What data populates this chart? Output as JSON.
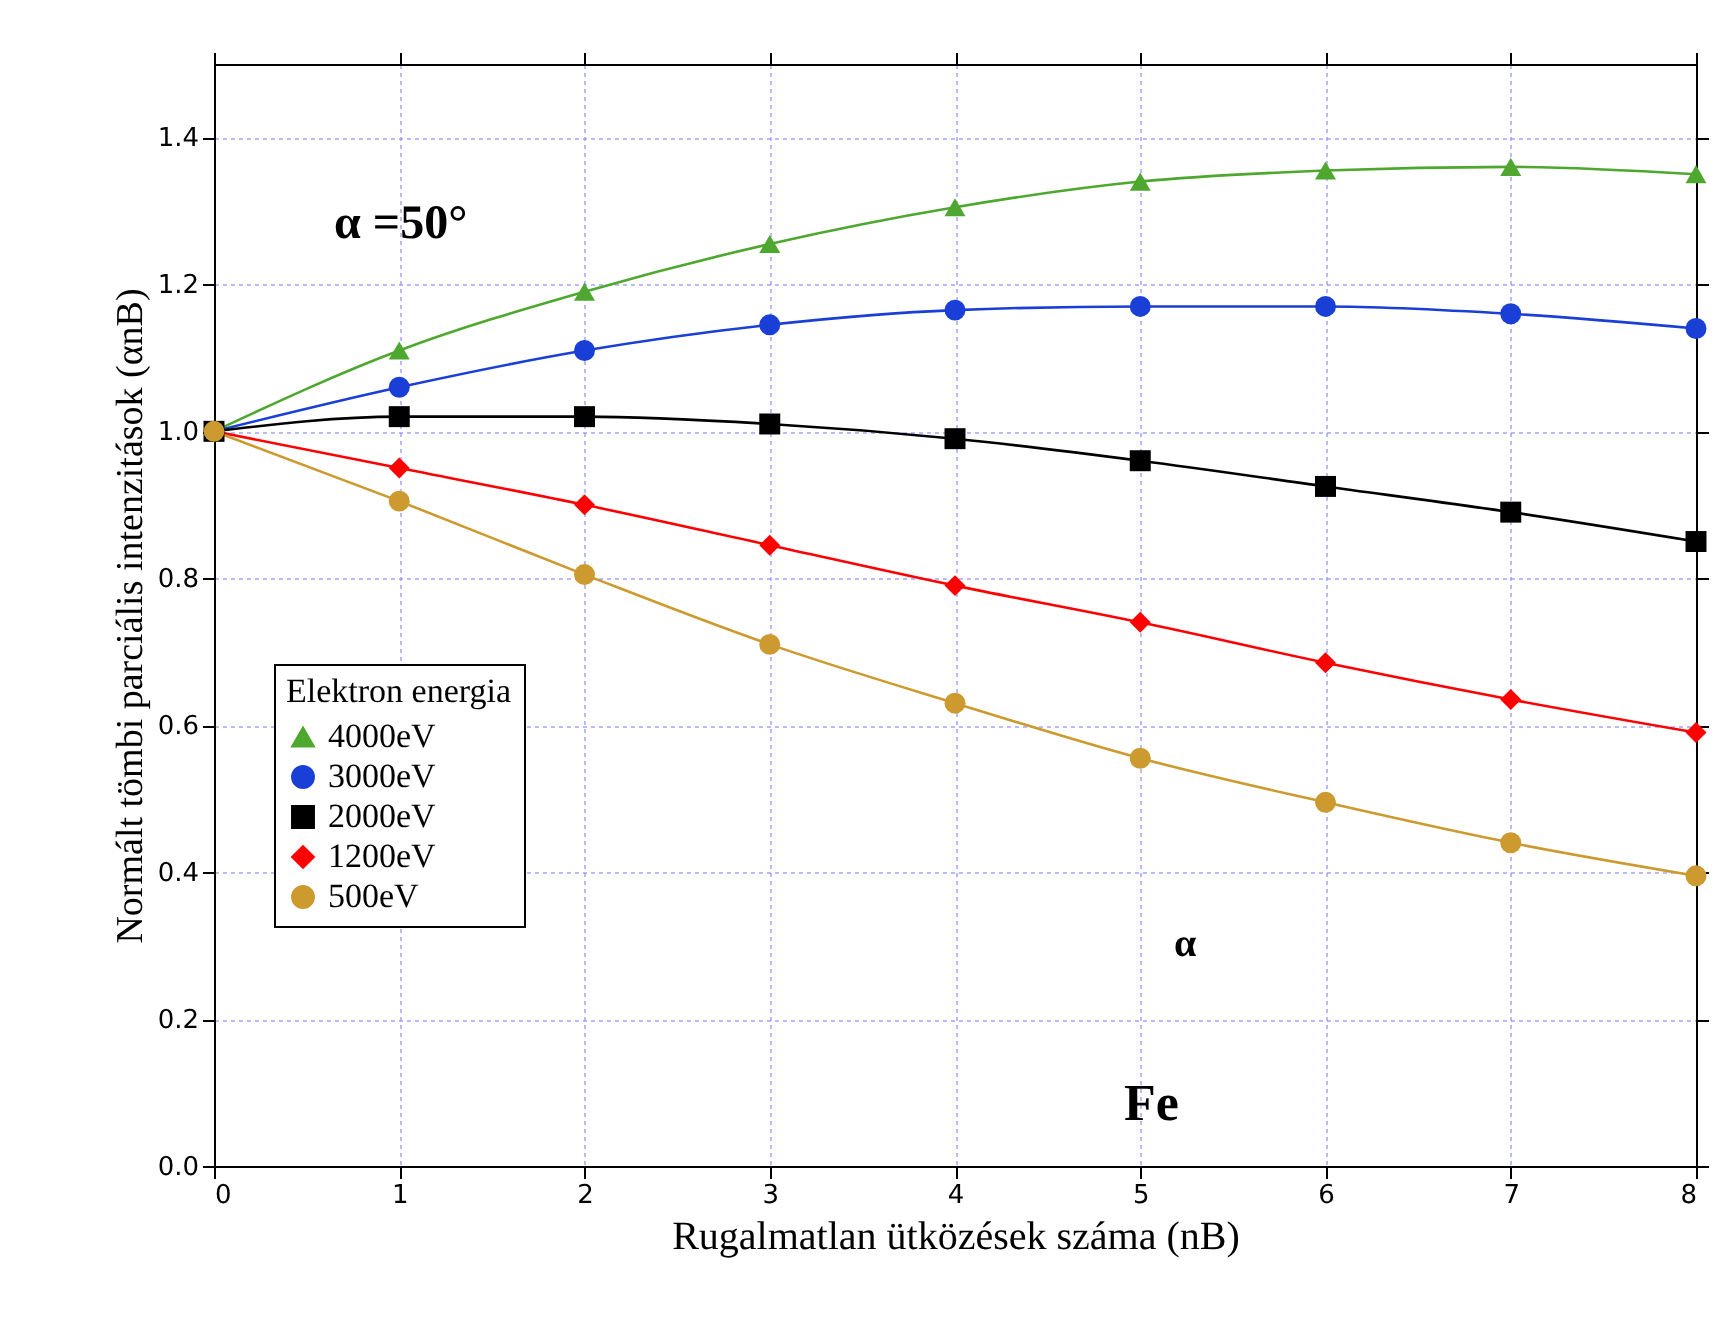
{
  "chart_data": {
    "type": "line",
    "xlabel": "Rugalmatlan ütközések száma (nB)",
    "ylabel": "Normált tömbi parciális intenzitások (αnB)",
    "legend_title": "Elektron energia",
    "legend": "bottom left",
    "grid": true,
    "x": [
      0,
      1,
      2,
      3,
      4,
      5,
      6,
      7,
      8
    ],
    "xlim": [
      0,
      8
    ],
    "xticks": [
      0,
      1,
      2,
      3,
      4,
      5,
      6,
      7,
      8
    ],
    "ylim": [
      0,
      1.5
    ],
    "yticks": [
      {
        "value": 0,
        "label": "0.0"
      },
      {
        "value": 0.2,
        "label": "0.2"
      },
      {
        "value": 0.4,
        "label": "0.4"
      },
      {
        "value": 0.6,
        "label": "0.6"
      },
      {
        "value": 0.8,
        "label": "0.8"
      },
      {
        "value": 1.0,
        "label": "1.0"
      },
      {
        "value": 1.2,
        "label": "1.2"
      },
      {
        "value": 1.4,
        "label": "1.4"
      }
    ],
    "annotations": [
      "α =50°",
      "α",
      "Fe"
    ],
    "series": [
      {
        "name": "4000eV",
        "color": "#4ea72e",
        "marker": "triangle",
        "values": [
          1,
          1.11,
          1.19,
          1.255,
          1.305,
          1.34,
          1.355,
          1.36,
          1.35
        ]
      },
      {
        "name": "3000eV",
        "color": "#1a3fd6",
        "marker": "circle",
        "values": [
          1,
          1.06,
          1.11,
          1.145,
          1.165,
          1.17,
          1.17,
          1.16,
          1.14
        ]
      },
      {
        "name": "2000eV",
        "color": "#000000",
        "marker": "square",
        "values": [
          1,
          1.02,
          1.02,
          1.01,
          0.99,
          0.96,
          0.925,
          0.89,
          0.85
        ]
      },
      {
        "name": "1200eV",
        "color": "#ff0000",
        "marker": "diamond",
        "values": [
          1,
          0.95,
          0.9,
          0.845,
          0.79,
          0.74,
          0.685,
          0.635,
          0.59
        ]
      },
      {
        "name": "500eV",
        "color": "#cc9a2e",
        "marker": "circle",
        "values": [
          1,
          0.905,
          0.805,
          0.71,
          0.63,
          0.555,
          0.495,
          0.44,
          0.395
        ]
      }
    ]
  }
}
